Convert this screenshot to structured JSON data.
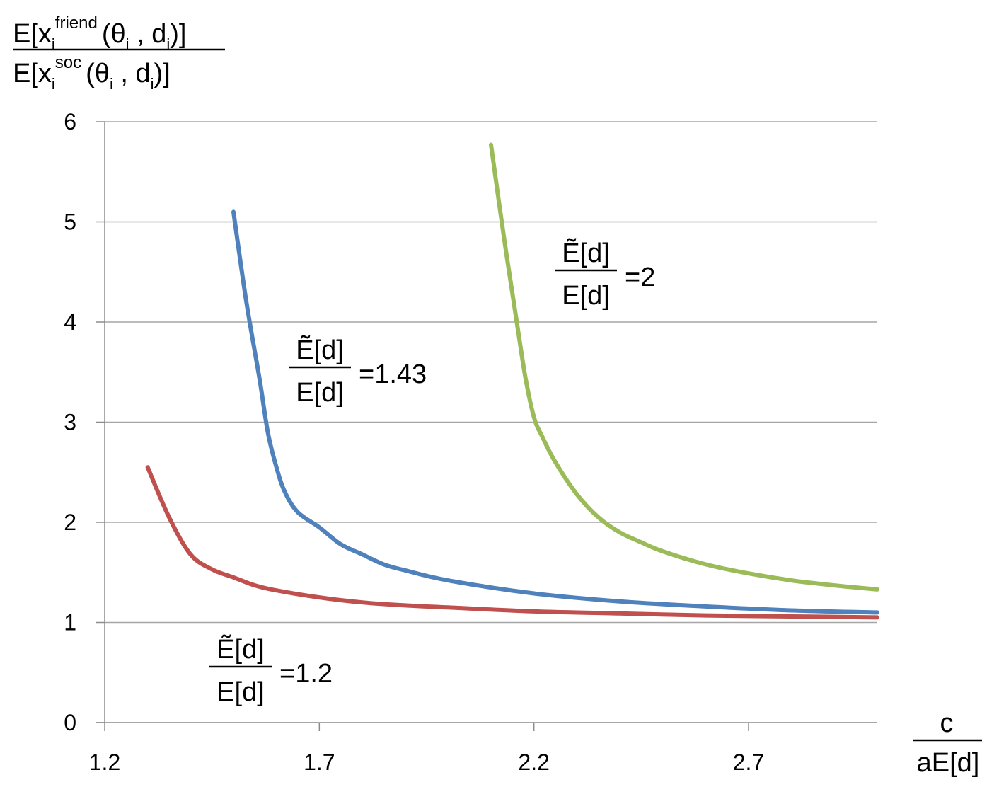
{
  "chart_data": {
    "type": "line",
    "ylabel": {
      "numerator": {
        "E": "E[x",
        "i": "i",
        "sup": "friend",
        "open": "(θ",
        "i2": "i",
        "mid": " , d",
        "i3": "i",
        "close": ")]"
      },
      "denominator": {
        "E": "E[x",
        "i": "i",
        "sup": "soc",
        "open": "(θ",
        "i2": "i",
        "mid": " , d",
        "i3": "i",
        "close": ")]"
      }
    },
    "xlabel": {
      "numerator": "c",
      "denominator": "aE[d]"
    },
    "xlim": [
      1.2,
      3.0
    ],
    "ylim": [
      0,
      6
    ],
    "xticks": [
      "1.2",
      "1.7",
      "2.2",
      "2.7"
    ],
    "yticks": [
      "0",
      "1",
      "2",
      "3",
      "4",
      "5",
      "6"
    ],
    "grid": "horizontal",
    "series": [
      {
        "color": "#c0504d",
        "label": {
          "numerator": "Ẽ[d]",
          "denominator": "E[d]",
          "value": "=1.2"
        },
        "x": [
          1.3,
          1.35,
          1.4,
          1.45,
          1.5,
          1.55,
          1.6,
          1.7,
          1.8,
          1.9,
          2.0,
          2.2,
          2.4,
          2.6,
          2.8,
          3.0
        ],
        "y": [
          2.55,
          2.05,
          1.68,
          1.53,
          1.45,
          1.37,
          1.32,
          1.25,
          1.2,
          1.17,
          1.15,
          1.11,
          1.09,
          1.07,
          1.06,
          1.05
        ]
      },
      {
        "color": "#4f81bd",
        "label": {
          "numerator": "Ẽ[d]",
          "denominator": "E[d]",
          "value": "=1.43"
        },
        "x": [
          1.5,
          1.53,
          1.56,
          1.58,
          1.6,
          1.62,
          1.65,
          1.7,
          1.75,
          1.8,
          1.85,
          1.9,
          2.0,
          2.2,
          2.4,
          2.6,
          2.8,
          3.0
        ],
        "y": [
          5.1,
          4.2,
          3.45,
          2.9,
          2.55,
          2.3,
          2.1,
          1.95,
          1.78,
          1.68,
          1.58,
          1.52,
          1.42,
          1.29,
          1.21,
          1.16,
          1.12,
          1.1
        ]
      },
      {
        "color": "#9bbb59",
        "label": {
          "numerator": "Ẽ[d]",
          "denominator": "E[d]",
          "value": "=2"
        },
        "x": [
          2.1,
          2.13,
          2.16,
          2.18,
          2.2,
          2.22,
          2.25,
          2.3,
          2.35,
          2.4,
          2.45,
          2.5,
          2.6,
          2.7,
          2.8,
          2.9,
          3.0
        ],
        "y": [
          5.77,
          4.85,
          4.0,
          3.45,
          3.05,
          2.85,
          2.6,
          2.28,
          2.05,
          1.9,
          1.8,
          1.71,
          1.58,
          1.49,
          1.42,
          1.37,
          1.33
        ]
      }
    ]
  }
}
